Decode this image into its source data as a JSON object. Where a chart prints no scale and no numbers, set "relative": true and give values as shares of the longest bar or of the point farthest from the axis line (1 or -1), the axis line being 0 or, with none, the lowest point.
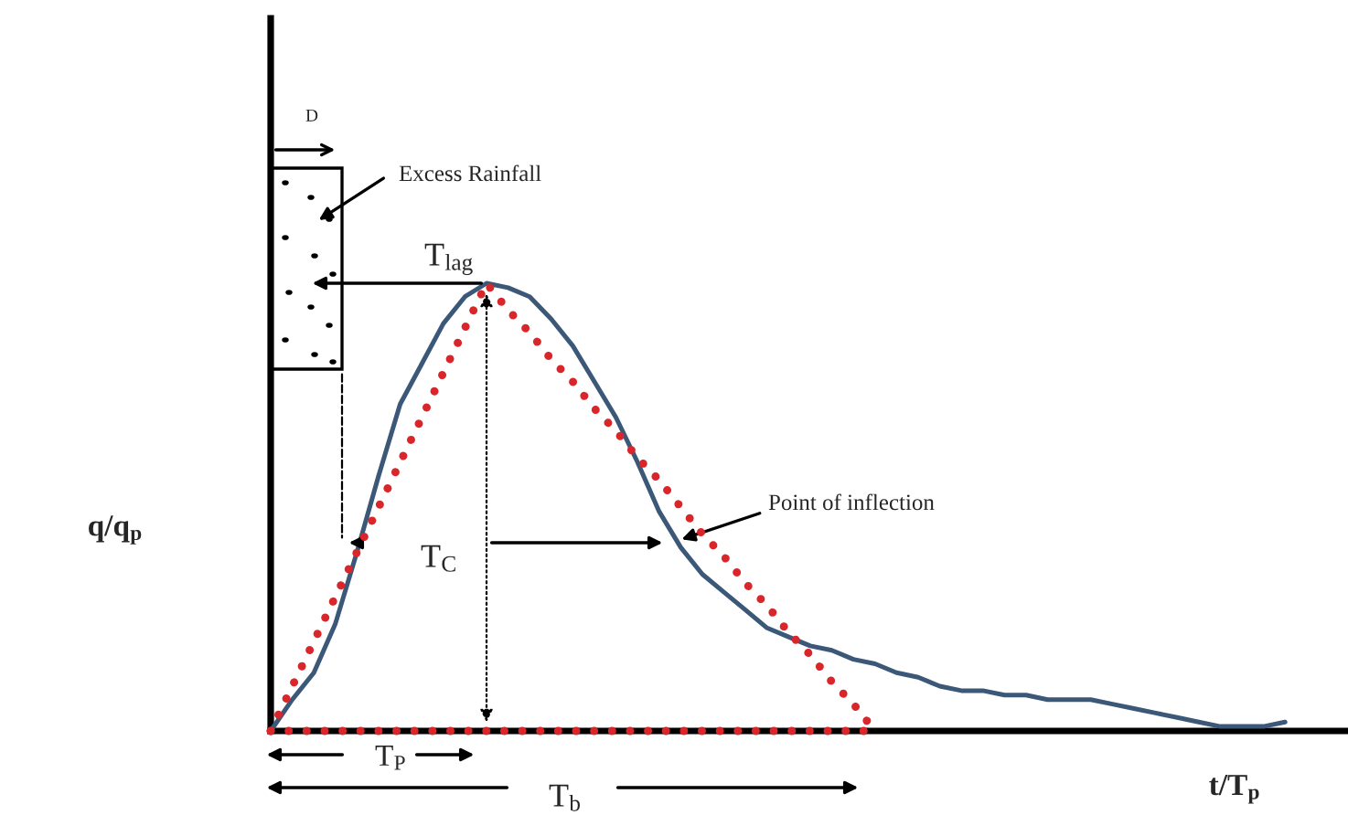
{
  "chart_data": {
    "type": "line",
    "relative": true,
    "grid": false,
    "legend": false,
    "marker": "none",
    "xlabel": "t/T$_{p}$",
    "ylabel": "q/q$_{p}$",
    "categories": [
      null,
      null,
      null,
      null,
      null,
      null,
      null,
      null,
      null,
      null,
      null,
      null,
      null,
      null,
      null,
      null,
      null,
      null,
      null,
      null,
      null,
      null,
      null,
      null,
      null,
      null,
      null,
      null,
      null,
      null,
      null,
      null,
      null,
      null,
      null,
      null,
      null,
      null,
      null,
      null,
      null,
      null,
      null,
      null,
      null,
      null,
      null,
      null
    ],
    "series": [
      {
        "color": "#3b5878",
        "line_style": "solid",
        "values": [
          0,
          0.07,
          0.13,
          0.24,
          0.4,
          0.57,
          0.73,
          0.82,
          0.91,
          0.97,
          1,
          0.99,
          0.97,
          0.92,
          0.86,
          0.78,
          0.7,
          0.6,
          0.49,
          0.41,
          0.35,
          0.31,
          0.27,
          0.23,
          0.21,
          0.19,
          0.18,
          0.16,
          0.15,
          0.13,
          0.12,
          0.1,
          0.09,
          0.09,
          0.08,
          0.08,
          0.07,
          0.07,
          0.07,
          0.06,
          0.05,
          0.04,
          0.03,
          0.02,
          0.01,
          0.01,
          0.01,
          0.02
        ]
      },
      {
        "color": "#d9262b",
        "line_style": "dotted",
        "values": [
          0,
          0.1,
          0.2,
          0.3,
          0.4,
          0.5,
          0.6,
          0.7,
          0.8,
          0.9,
          1,
          0.94,
          0.89,
          0.83,
          0.78,
          0.72,
          0.67,
          0.61,
          0.56,
          0.5,
          0.44,
          0.39,
          0.33,
          0.28,
          0.22,
          0.17,
          0.11,
          0.06,
          0,
          null,
          null,
          null,
          null,
          null,
          null,
          null,
          null,
          null,
          null,
          null,
          null,
          null,
          null,
          null,
          null,
          null,
          null,
          null
        ]
      },
      {
        "color": "#d9262b",
        "line_style": "dotted",
        "values": [
          0,
          0,
          0,
          0,
          0,
          0,
          0,
          0,
          0,
          0,
          0,
          0,
          0,
          0,
          0,
          0,
          0,
          0,
          0,
          0,
          0,
          0,
          0,
          0,
          0,
          0,
          0,
          0,
          0,
          null,
          null,
          null,
          null,
          null,
          null,
          null,
          null,
          null,
          null,
          null,
          null,
          null,
          null,
          null,
          null,
          null,
          null,
          null
        ]
      }
    ],
    "annotations": [
      "D",
      "Excess Rainfall",
      "T$_{lag}$",
      "T$_{C}$",
      "Point of inflection",
      "T$_{P}$",
      "T$_{b}$"
    ]
  }
}
